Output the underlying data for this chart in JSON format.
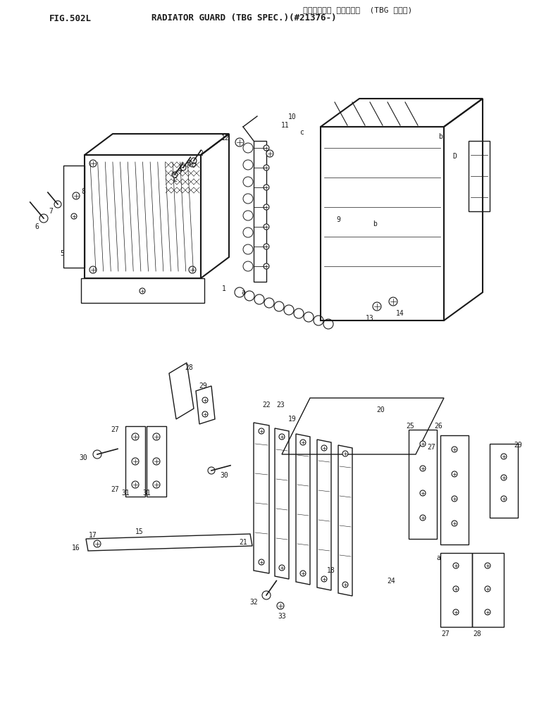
{
  "title_japanese": "ラジエータ ガード (TBG ショウ)",
  "title_english": "RADIATOR GUARD (TBG SPEC.)(#21376-)",
  "fig_number": "FIG.502L",
  "bg": "#ffffff",
  "lc": "#1a1a1a",
  "fig_w": 7.82,
  "fig_h": 10.25,
  "dpi": 100
}
